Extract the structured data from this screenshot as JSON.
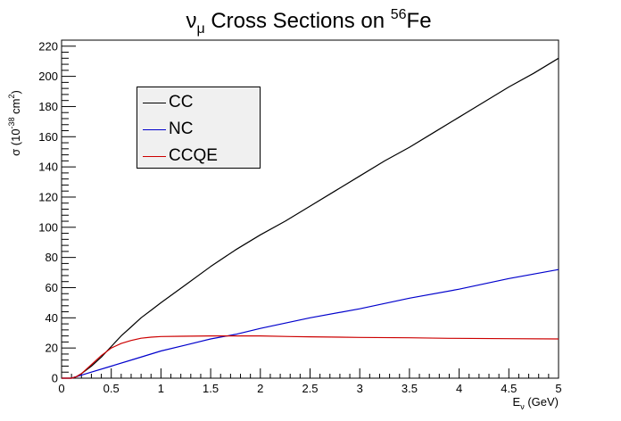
{
  "chart_data": {
    "type": "line",
    "title": {
      "base": "ν",
      "sub": "μ",
      "mid": " Cross Sections on ",
      "sup": "56",
      "tail": "Fe"
    },
    "xlabel": {
      "base": "E",
      "sub": "ν",
      "tail": " (GeV)"
    },
    "ylabel": {
      "base": "σ (10",
      "sup": "-38",
      "mid": " cm",
      "sup2": "2",
      "tail": ")"
    },
    "xlim": [
      0,
      5
    ],
    "ylim": [
      0,
      224
    ],
    "x_ticks": [
      "0",
      "0.5",
      "1",
      "1.5",
      "2",
      "2.5",
      "3",
      "3.5",
      "4",
      "4.5",
      "5"
    ],
    "y_ticks": [
      "0",
      "20",
      "40",
      "60",
      "80",
      "100",
      "120",
      "140",
      "160",
      "180",
      "200",
      "220"
    ],
    "legend_position": "upper-left",
    "grid": false,
    "series": [
      {
        "name": "CC",
        "color": "#000000",
        "x": [
          0.0,
          0.1,
          0.15,
          0.2,
          0.3,
          0.4,
          0.5,
          0.6,
          0.7,
          0.8,
          0.9,
          1.0,
          1.25,
          1.5,
          1.75,
          2.0,
          2.25,
          2.5,
          2.75,
          3.0,
          3.25,
          3.5,
          3.75,
          4.0,
          4.25,
          4.5,
          4.75,
          5.0
        ],
        "y": [
          0,
          0,
          1,
          3,
          8,
          14,
          21,
          28,
          34,
          40,
          45,
          50,
          62,
          74,
          85,
          95,
          104,
          114,
          124,
          134,
          144,
          153,
          163,
          173,
          183,
          193,
          202,
          212
        ]
      },
      {
        "name": "NC",
        "color": "#0000cc",
        "x": [
          0.0,
          0.1,
          0.2,
          0.3,
          0.5,
          0.75,
          1.0,
          1.25,
          1.5,
          1.75,
          2.0,
          2.5,
          3.0,
          3.5,
          4.0,
          4.5,
          5.0
        ],
        "y": [
          0,
          0,
          2,
          4,
          8,
          13,
          18,
          22,
          26,
          29,
          33,
          40,
          46,
          53,
          59,
          66,
          72
        ]
      },
      {
        "name": "CCQE",
        "color": "#cc0000",
        "x": [
          0.0,
          0.1,
          0.15,
          0.2,
          0.3,
          0.4,
          0.5,
          0.6,
          0.7,
          0.8,
          0.9,
          1.0,
          1.2,
          1.5,
          2.0,
          2.3,
          2.5,
          3.0,
          3.5,
          3.9,
          4.5,
          5.0
        ],
        "y": [
          0,
          0,
          1,
          3,
          9,
          15,
          20,
          23,
          25,
          26.5,
          27.2,
          27.6,
          27.8,
          28,
          28,
          27.6,
          27.4,
          27,
          26.8,
          26.4,
          26.2,
          26
        ]
      }
    ]
  }
}
